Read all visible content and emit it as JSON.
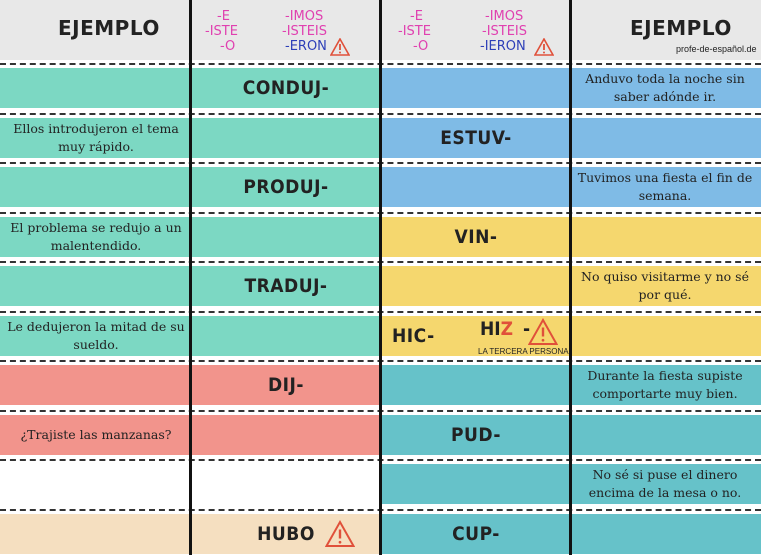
{
  "colors": {
    "teal": "#7cd8c3",
    "blue": "#7fbbe6",
    "yellow": "#f5d76e",
    "salmon": "#f2948c",
    "dteal": "#66c2c9",
    "beige": "#f5dfc0",
    "header": "#e8e8e8",
    "pink": "#e040b0",
    "navy": "#2d3fb8",
    "warn": "#e0503a"
  },
  "header": {
    "left_title": "EJEMPLO",
    "right_title": "EJEMPLO",
    "credit": "profe-de-español.de",
    "endings": {
      "e": "-E",
      "iste": "-ISTE",
      "o": "-O",
      "imos": "-IMOS",
      "isteis": "-ISTEIS",
      "eron": "-ERON",
      "ieron": "-IERON"
    }
  },
  "left_table": [
    {
      "example": "",
      "stem": "CONDUJ-"
    },
    {
      "example": "Ellos introdujeron el tema muy rápido.",
      "stem": ""
    },
    {
      "example": "",
      "stem": "PRODUJ-"
    },
    {
      "example": "El problema se redujo a un malentendido.",
      "stem": ""
    },
    {
      "example": "",
      "stem": "TRADUJ-"
    },
    {
      "example": "Le dedujeron la mitad de su sueldo.",
      "stem": ""
    },
    {
      "example": "",
      "stem": "DIJ-"
    },
    {
      "example": "¿Trajiste las manzanas?",
      "stem": ""
    },
    {
      "example": "",
      "stem": ""
    },
    {
      "example": "",
      "stem": "HUBO"
    }
  ],
  "right_table": [
    {
      "stem": "",
      "example": "Anduvo toda la noche sin saber adónde ir."
    },
    {
      "stem": "ESTUV-",
      "example": ""
    },
    {
      "stem": "",
      "example": "Tuvimos una fiesta el fin de semana."
    },
    {
      "stem": "VIN-",
      "example": ""
    },
    {
      "stem": "",
      "example": "No quiso visitarme y no sé por qué."
    },
    {
      "stem": "HIC-",
      "example": ""
    },
    {
      "stem": "",
      "example": "Durante la fiesta supiste comportarte muy bien."
    },
    {
      "stem": "PUD-",
      "example": ""
    },
    {
      "stem": "",
      "example": "No sé si puse el dinero encima de la mesa o no."
    },
    {
      "stem": "CUP-",
      "example": ""
    }
  ],
  "hiz": {
    "prefix": "HI",
    "z": "Z",
    "dash": "-",
    "note": "LA TERCERA PERSONA"
  }
}
